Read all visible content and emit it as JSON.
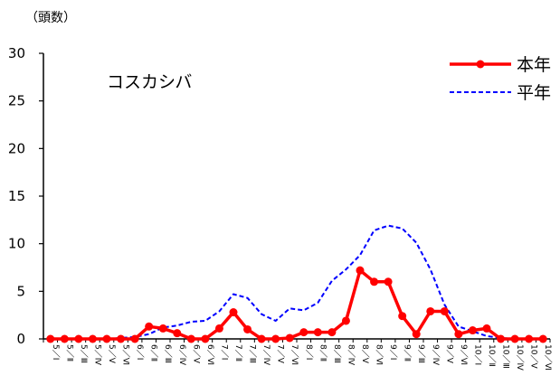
{
  "chart_data": {
    "type": "line",
    "title": "コスカシバ",
    "unit_label": "（頭数）",
    "ylim": [
      0,
      30
    ],
    "yticks": [
      0,
      5,
      10,
      15,
      20,
      25,
      30
    ],
    "categories": [
      "5／Ⅰ",
      "5／Ⅱ",
      "5／Ⅲ",
      "5／Ⅳ",
      "5／Ⅴ",
      "5／Ⅵ",
      "6／Ⅰ",
      "6／Ⅱ",
      "6／Ⅲ",
      "6／Ⅳ",
      "6／Ⅴ",
      "6／Ⅵ",
      "7／Ⅰ",
      "7／Ⅱ",
      "7／Ⅲ",
      "7／Ⅳ",
      "7／Ⅴ",
      "7／Ⅵ",
      "8／Ⅰ",
      "8／Ⅱ",
      "8／Ⅲ",
      "8／Ⅳ",
      "8／Ⅴ",
      "8／Ⅵ",
      "9／Ⅰ",
      "9／Ⅱ",
      "9／Ⅲ",
      "9／Ⅳ",
      "9／Ⅴ",
      "9／Ⅵ",
      "10／Ⅰ",
      "10／Ⅱ",
      "10／Ⅲ",
      "10／Ⅳ",
      "10／Ⅴ",
      "10／Ⅵ"
    ],
    "series": [
      {
        "name": "本年",
        "color": "#ff0000",
        "style": "solid-markers",
        "values": [
          0,
          0,
          0,
          0,
          0,
          0,
          0,
          1.3,
          1.1,
          0.6,
          0,
          0,
          1.1,
          2.8,
          1.0,
          0,
          0,
          0.1,
          0.7,
          0.7,
          0.7,
          1.9,
          7.2,
          6.0,
          6.0,
          2.4,
          0.5,
          2.9,
          2.9,
          0.5,
          0.9,
          1.1,
          0,
          0,
          0,
          0
        ]
      },
      {
        "name": "平年",
        "color": "#0000ff",
        "style": "dashed",
        "values": [
          0,
          0,
          0,
          0,
          0,
          0.1,
          0.2,
          0.5,
          1.2,
          1.4,
          1.8,
          1.9,
          2.9,
          4.7,
          4.3,
          2.6,
          1.9,
          3.2,
          3.0,
          3.8,
          6.1,
          7.3,
          8.8,
          11.4,
          11.9,
          11.6,
          10.1,
          7.3,
          3.6,
          1.3,
          0.8,
          0.3,
          0.1,
          0,
          0,
          0
        ]
      }
    ],
    "legend_position": "top-right",
    "grid": false
  }
}
